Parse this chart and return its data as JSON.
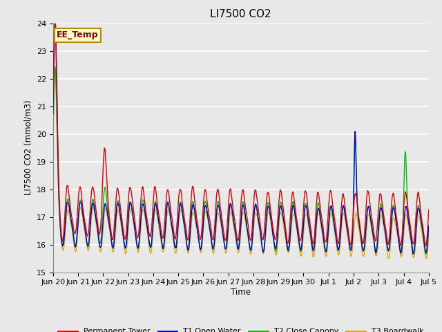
{
  "title": "LI7500 CO2",
  "ylabel": "LI7500 CO2 (mmol/m3)",
  "xlabel": "Time",
  "ylim": [
    15.0,
    24.0
  ],
  "yticks": [
    15.0,
    16.0,
    17.0,
    18.0,
    19.0,
    20.0,
    21.0,
    22.0,
    23.0,
    24.0
  ],
  "bg_color": "#e8e8e8",
  "annotation_text": "EE_Temp",
  "annotation_bg": "#ffffcc",
  "annotation_border": "#bb8800",
  "colors": {
    "Permanent Tower": "#dd0000",
    "T1 Open Water": "#0000dd",
    "T2 Close Canopy": "#00bb00",
    "T3 Boardwalk": "#ddaa00"
  },
  "xtick_labels": [
    "Jun 20",
    "Jun 21",
    "Jun 22",
    "Jun 23",
    "Jun 24",
    "Jun 25",
    "Jun 26",
    "Jun 27",
    "Jun 28",
    "Jun 29",
    "Jun 30",
    "Jul 1",
    "Jul 2",
    "Jul 3",
    "Jul 4",
    "Jul 5"
  ],
  "figsize": [
    6.4,
    4.8
  ],
  "dpi": 100
}
